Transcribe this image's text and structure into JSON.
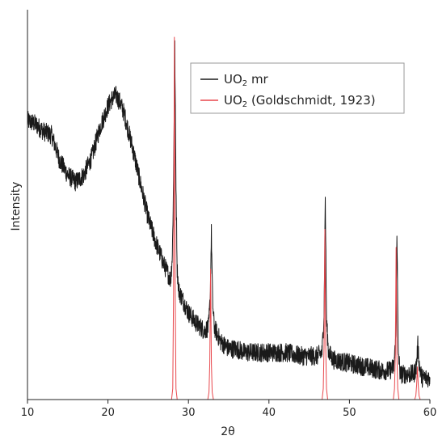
{
  "chart_data": {
    "type": "line",
    "title": "",
    "xlabel": "2θ",
    "ylabel": "Intensity",
    "xlim": [
      10,
      60
    ],
    "ylim": [
      0,
      100
    ],
    "xticks": [
      10,
      20,
      30,
      40,
      50,
      60
    ],
    "grid": false,
    "legend_position": "top-right",
    "legend": [
      {
        "prefix": "UO",
        "sub": "2",
        "suffix": " mr",
        "color": "#1a1a1a"
      },
      {
        "prefix": "UO",
        "sub": "2",
        "suffix": " (Goldschmidt, 1923)",
        "color": "#e8474c"
      }
    ],
    "series": [
      {
        "name": "UO2 mr",
        "color": "#1a1a1a",
        "noise": 1.2,
        "x": [
          10,
          11,
          12,
          13,
          14,
          15,
          16,
          17,
          18,
          19,
          20,
          20.5,
          21,
          21.5,
          22,
          23,
          24,
          25,
          26,
          27,
          27.8,
          28.0,
          28.15,
          28.3,
          28.45,
          28.6,
          28.8,
          29.2,
          30,
          31,
          32,
          32.5,
          32.7,
          32.85,
          33.0,
          33.2,
          33.6,
          34,
          35,
          36,
          37,
          38,
          40,
          42,
          44,
          45,
          46,
          46.6,
          46.85,
          47.0,
          47.15,
          47.4,
          48,
          50,
          52,
          54,
          55,
          55.5,
          55.75,
          55.9,
          56.05,
          56.3,
          56.8,
          57,
          58,
          58.3,
          58.5,
          58.7,
          59,
          60
        ],
        "y": [
          77,
          76,
          74,
          73,
          66,
          62,
          60,
          62,
          67,
          75,
          81,
          83,
          84,
          82,
          79,
          70,
          60,
          50,
          43,
          37,
          33,
          40,
          60,
          97,
          60,
          36,
          30,
          28,
          24,
          21,
          19,
          20,
          28,
          46,
          27,
          20,
          18,
          16,
          14,
          14,
          13,
          13,
          13,
          13,
          12,
          12,
          12,
          13,
          24,
          56,
          22,
          13,
          11,
          10,
          9,
          8,
          8,
          9,
          16,
          47,
          14,
          7,
          7,
          7,
          7,
          9,
          15,
          9,
          6,
          6
        ]
      },
      {
        "name": "UO2 (Goldschmidt, 1923)",
        "color": "#e8474c",
        "noise": 0,
        "x": [
          10,
          27.9,
          28.05,
          28.15,
          28.25,
          28.35,
          28.45,
          28.6,
          32.4,
          32.55,
          32.65,
          32.75,
          32.85,
          32.95,
          33.1,
          46.6,
          46.75,
          46.85,
          46.95,
          47.05,
          47.15,
          47.3,
          55.45,
          55.6,
          55.7,
          55.8,
          55.9,
          56.0,
          56.15,
          58.1,
          58.25,
          58.35,
          58.45,
          58.55,
          58.65,
          58.8,
          60
        ],
        "y": [
          0,
          0,
          3,
          30,
          100,
          30,
          3,
          0,
          0,
          2,
          10,
          36,
          10,
          2,
          0,
          0,
          3,
          15,
          47,
          15,
          3,
          0,
          0,
          3,
          12,
          42,
          12,
          3,
          0,
          0,
          1,
          4,
          9,
          4,
          1,
          0,
          0
        ]
      }
    ]
  }
}
